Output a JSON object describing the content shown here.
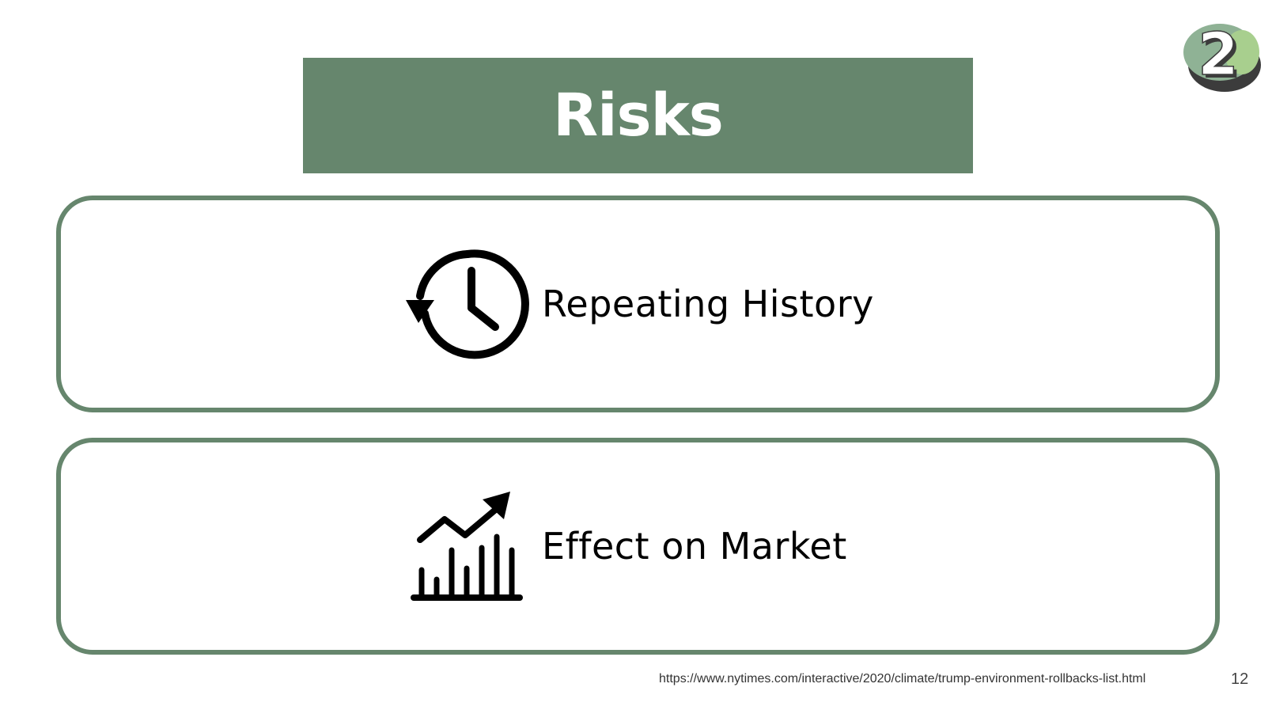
{
  "slide": {
    "title": "Risks",
    "logo": {
      "text": "2",
      "icon": "number-two-badge-icon",
      "colors": [
        "#8fb295",
        "#a8cf8e",
        "#3c3c3c"
      ]
    },
    "cards": [
      {
        "label": "Repeating History",
        "icon": "history-clock-icon"
      },
      {
        "label": "Effect on Market",
        "icon": "market-growth-chart-icon"
      }
    ],
    "source_url": "https://www.nytimes.com/interactive/2020/climate/trump-environment-rollbacks-list.html",
    "page_number": "12"
  },
  "colors": {
    "accent": "#66866d",
    "background": "#ffffff",
    "text": "#000000"
  }
}
